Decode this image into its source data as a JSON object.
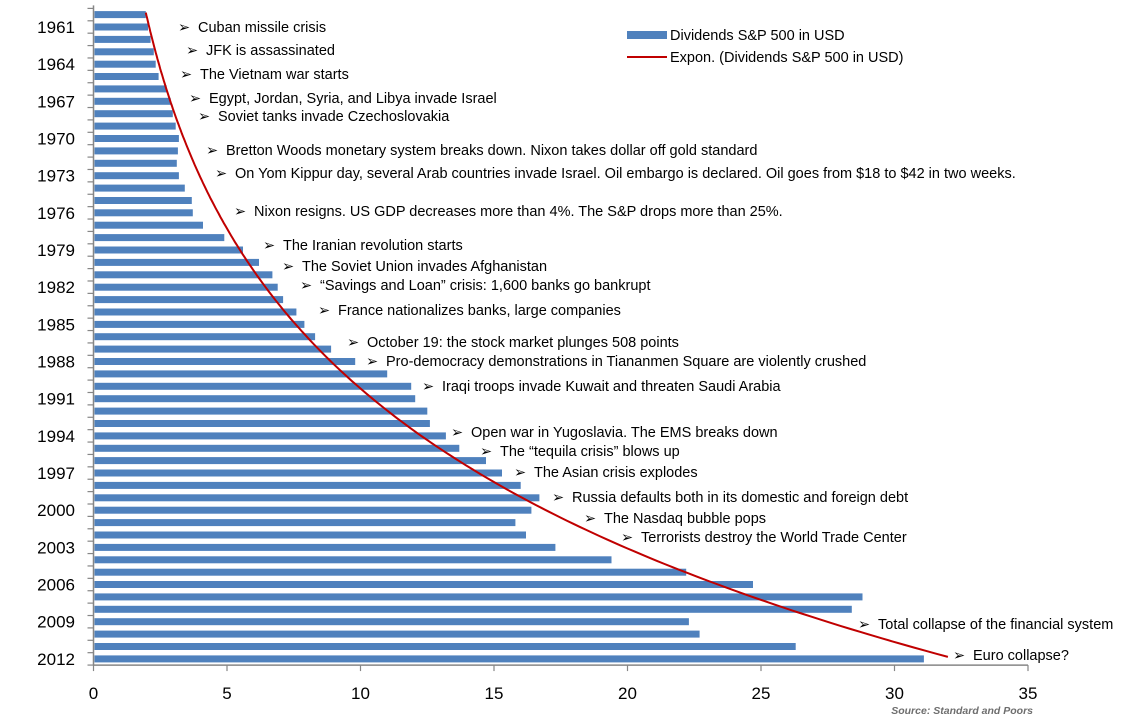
{
  "chart_data": {
    "type": "bar",
    "orientation": "horizontal",
    "title": "",
    "xlabel": "",
    "ylabel": "",
    "xlim": [
      0,
      35
    ],
    "xticks": [
      0,
      5,
      10,
      15,
      20,
      25,
      30,
      35
    ],
    "xtick_labels": [
      "0",
      "5",
      "10",
      "15",
      "20",
      "25",
      "30",
      "35"
    ],
    "categories": [
      1960,
      1961,
      1962,
      1963,
      1964,
      1965,
      1966,
      1967,
      1968,
      1969,
      1970,
      1971,
      1972,
      1973,
      1974,
      1975,
      1976,
      1977,
      1978,
      1979,
      1980,
      1981,
      1982,
      1983,
      1984,
      1985,
      1986,
      1987,
      1988,
      1989,
      1990,
      1991,
      1992,
      1993,
      1994,
      1995,
      1996,
      1997,
      1998,
      1999,
      2000,
      2001,
      2002,
      2003,
      2004,
      2005,
      2006,
      2007,
      2008,
      2009,
      2010,
      2011,
      2012
    ],
    "ytick_labels": [
      "1961",
      "1964",
      "1967",
      "1970",
      "1973",
      "1976",
      "1979",
      "1982",
      "1985",
      "1988",
      "1991",
      "1994",
      "1997",
      "2000",
      "2003",
      "2006",
      "2009",
      "2012"
    ],
    "category_order": "top-to-bottom",
    "grid": false,
    "series": [
      {
        "name": "Dividends S&P 500 in USD",
        "type": "bar",
        "color": "#4f81bd",
        "values": [
          1.96,
          2.04,
          2.14,
          2.26,
          2.33,
          2.44,
          2.74,
          2.89,
          2.97,
          3.08,
          3.2,
          3.16,
          3.12,
          3.2,
          3.42,
          3.68,
          3.72,
          4.1,
          4.9,
          5.6,
          6.2,
          6.7,
          6.9,
          7.1,
          7.6,
          7.9,
          8.3,
          8.9,
          9.8,
          11.0,
          11.9,
          12.05,
          12.5,
          12.6,
          13.2,
          13.7,
          14.7,
          15.3,
          16.0,
          16.7,
          16.4,
          15.8,
          16.2,
          17.3,
          19.4,
          22.2,
          24.7,
          28.8,
          28.4,
          22.3,
          22.7,
          26.3,
          31.1
        ]
      },
      {
        "name": "Expon. (Dividends S&P 500 in USD)",
        "type": "trendline-exponential",
        "color": "#c00000",
        "start": {
          "year": 1960,
          "value": 1.96
        },
        "end": {
          "year": 2012,
          "value": 32.0
        }
      }
    ],
    "legend": {
      "position": "top-right",
      "entries": [
        "Dividends S&P 500 in USD",
        "Expon. (Dividends S&P 500 in USD)"
      ]
    },
    "annotations": [
      {
        "year": 1961,
        "text": "Cuban missile crisis"
      },
      {
        "year": 1963,
        "text": "JFK is assassinated"
      },
      {
        "year": 1965,
        "text": "The Vietnam war starts"
      },
      {
        "year": 1967,
        "text": "Egypt, Jordan, Syria, and Libya invade Israel"
      },
      {
        "year": 1968,
        "text": "Soviet tanks invade Czechoslovakia"
      },
      {
        "year": 1971,
        "text": "Bretton Woods monetary system breaks down. Nixon takes dollar off gold standard"
      },
      {
        "year": 1973,
        "text": "On Yom Kippur day, several Arab countries invade Israel. Oil embargo is declared. Oil goes from $18 to $42 in two weeks."
      },
      {
        "year": 1974,
        "text": "Nixon resigns. US GDP decreases more than 4%. The S&P drops more than 25%."
      },
      {
        "year": 1979,
        "text": "The Iranian revolution starts"
      },
      {
        "year": 1979.5,
        "text": "The Soviet Union invades Afghanistan"
      },
      {
        "year": 1981,
        "text": "“Savings and Loan” crisis: 1,600 banks go bankrupt"
      },
      {
        "year": 1982,
        "text": "France nationalizes banks, large companies"
      },
      {
        "year": 1987,
        "text": "October 19: the stock market plunges 508 points"
      },
      {
        "year": 1989,
        "text": "Pro-democracy demonstrations in Tiananmen Square are violently crushed"
      },
      {
        "year": 1990,
        "text": "Iraqi troops invade Kuwait and threaten Saudi Arabia"
      },
      {
        "year": 1991,
        "text": "Open war in Yugoslavia. The EMS breaks down"
      },
      {
        "year": 1994,
        "text": "The “tequila crisis” blows up"
      },
      {
        "year": 1997,
        "text": "The Asian crisis explodes"
      },
      {
        "year": 1998,
        "text": "Russia defaults both in its domestic and foreign debt"
      },
      {
        "year": 2000,
        "text": "The Nasdaq bubble pops"
      },
      {
        "year": 2001,
        "text": "Terrorists destroy the World Trade Center"
      },
      {
        "year": 2008,
        "text": "Total collapse of the financial system"
      },
      {
        "year": 2011,
        "text": "Euro collapse?"
      }
    ],
    "source": "Source: Standard and Poors"
  }
}
